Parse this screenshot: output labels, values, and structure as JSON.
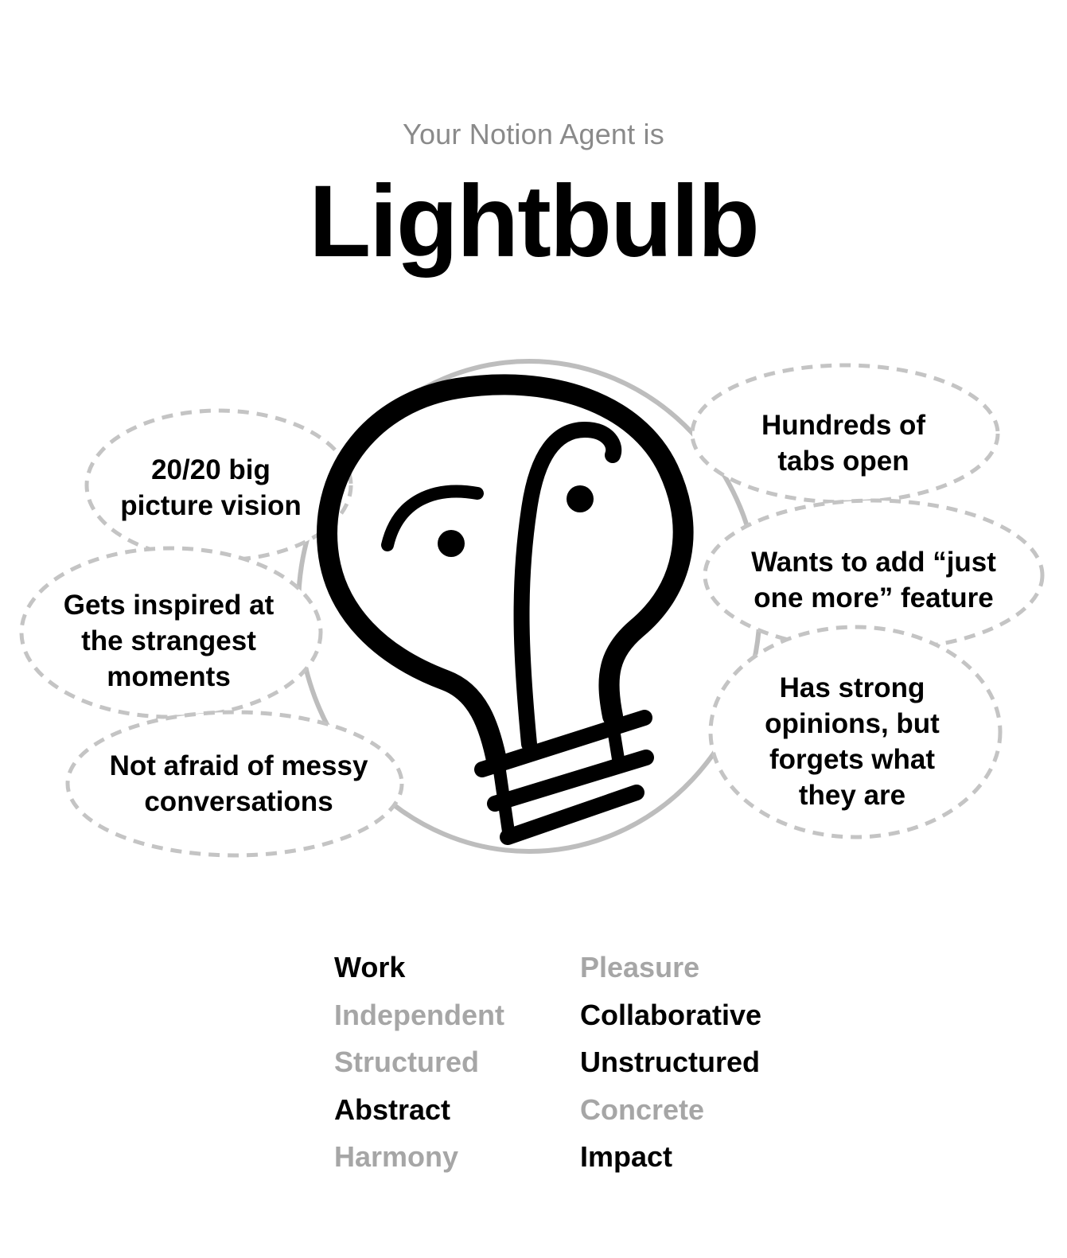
{
  "header": {
    "subtitle": "Your Notion Agent is",
    "title": "Lightbulb"
  },
  "illustration": {
    "icon": "lightbulb-face-icon"
  },
  "bubbles": [
    {
      "id": "vision",
      "text": "20/20 big picture vision"
    },
    {
      "id": "inspired",
      "text": "Gets inspired at the strangest moments"
    },
    {
      "id": "messy",
      "text": "Not afraid of messy conversations"
    },
    {
      "id": "tabs",
      "text": "Hundreds of tabs open"
    },
    {
      "id": "feature",
      "text": "Wants to add “just one more” feature"
    },
    {
      "id": "opinions",
      "text": "Has strong opinions, but forgets what they are"
    }
  ],
  "traits": [
    {
      "left": "Work",
      "right": "Pleasure",
      "selected": "left"
    },
    {
      "left": "Independent",
      "right": "Collaborative",
      "selected": "right"
    },
    {
      "left": "Structured",
      "right": "Unstructured",
      "selected": "right"
    },
    {
      "left": "Abstract",
      "right": "Concrete",
      "selected": "left"
    },
    {
      "left": "Harmony",
      "right": "Impact",
      "selected": "right"
    }
  ],
  "colors": {
    "active_text": "#000000",
    "inactive_text": "#a6a6a6",
    "subtitle_text": "#8a8a8a",
    "bubble_outline": "#c4c4c4",
    "circle_outline": "#bdbdbd"
  }
}
